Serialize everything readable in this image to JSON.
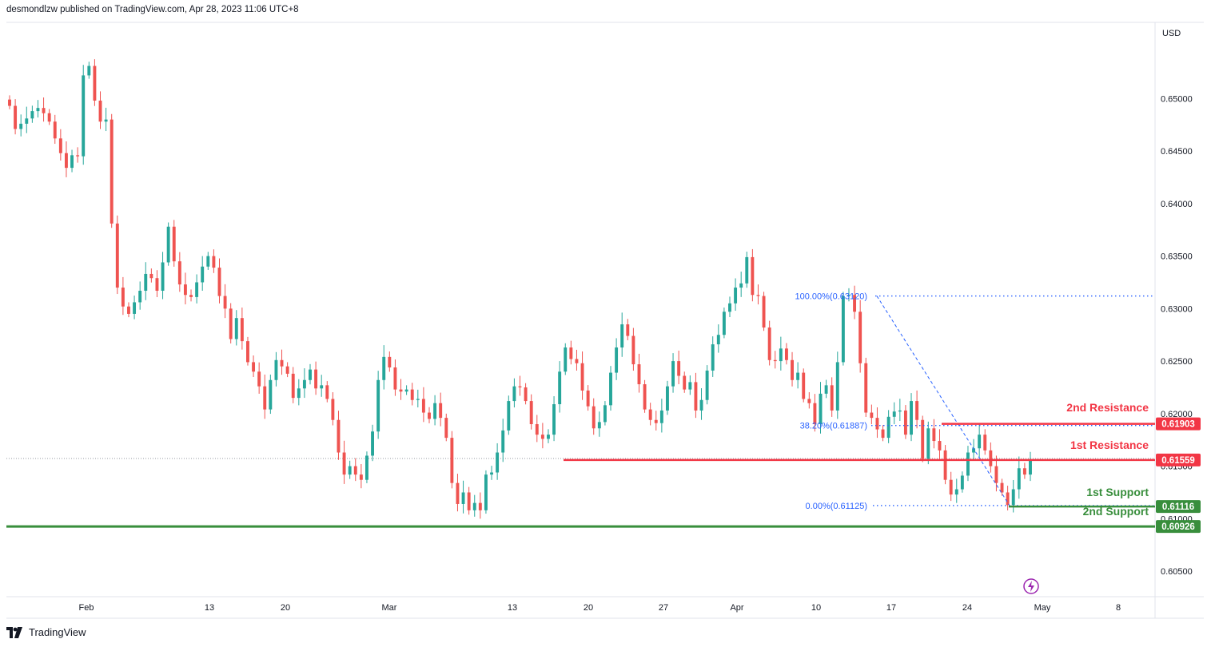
{
  "header": {
    "attribution": "desmondlzw published on TradingView.com, Apr 28, 2023 11:06 UTC+8"
  },
  "footer": {
    "brand": "TradingView"
  },
  "chart_data": {
    "type": "candlestick",
    "currency_label": "USD",
    "ylim": [
      0.6025,
      0.6555
    ],
    "y_ticks": [
      "0.65000",
      "0.64500",
      "0.64000",
      "0.63500",
      "0.63000",
      "0.62500",
      "0.62000",
      "0.61500",
      "0.61000",
      "0.60500"
    ],
    "x_ticks": [
      "Feb",
      "13",
      "20",
      "Mar",
      "13",
      "20",
      "27",
      "Apr",
      "10",
      "17",
      "24",
      "May",
      "8"
    ],
    "colors": {
      "up": "#26a69a",
      "down": "#ef5350",
      "resistance": "#f23645",
      "support": "#388e3c",
      "fib": "#2962ff"
    },
    "close_series": [
      0.6493,
      0.6471,
      0.6476,
      0.6481,
      0.6488,
      0.6491,
      0.6486,
      0.6478,
      0.6462,
      0.6448,
      0.6434,
      0.6446,
      0.6445,
      0.6522,
      0.6531,
      0.6498,
      0.6478,
      0.648,
      0.6381,
      0.632,
      0.6302,
      0.6295,
      0.6306,
      0.6317,
      0.6333,
      0.6329,
      0.6317,
      0.6344,
      0.6378,
      0.6345,
      0.6323,
      0.6313,
      0.6311,
      0.6325,
      0.634,
      0.635,
      0.6339,
      0.6312,
      0.63,
      0.6271,
      0.6291,
      0.6269,
      0.6249,
      0.624,
      0.6226,
      0.6204,
      0.6232,
      0.6251,
      0.6245,
      0.6238,
      0.6215,
      0.6224,
      0.6232,
      0.6242,
      0.6224,
      0.6227,
      0.6214,
      0.6194,
      0.6163,
      0.6142,
      0.615,
      0.6142,
      0.6137,
      0.616,
      0.6183,
      0.6232,
      0.6254,
      0.6244,
      0.6223,
      0.6221,
      0.6223,
      0.6213,
      0.6214,
      0.6201,
      0.6195,
      0.621,
      0.6196,
      0.6177,
      0.6134,
      0.6114,
      0.6125,
      0.6108,
      0.6115,
      0.6108,
      0.6142,
      0.6144,
      0.6163,
      0.6184,
      0.6212,
      0.6226,
      0.6225,
      0.6212,
      0.619,
      0.618,
      0.6176,
      0.618,
      0.6209,
      0.624,
      0.6263,
      0.6252,
      0.6248,
      0.6222,
      0.6207,
      0.6186,
      0.6192,
      0.6208,
      0.6239,
      0.6263,
      0.6285,
      0.6274,
      0.6247,
      0.6228,
      0.6204,
      0.6194,
      0.6191,
      0.6203,
      0.6226,
      0.625,
      0.6236,
      0.6223,
      0.623,
      0.6203,
      0.6213,
      0.6241,
      0.6266,
      0.6275,
      0.6297,
      0.6305,
      0.632,
      0.6324,
      0.6349,
      0.6313,
      0.6312,
      0.6282,
      0.6251,
      0.625,
      0.6262,
      0.6251,
      0.6232,
      0.6239,
      0.6214,
      0.621,
      0.619,
      0.6219,
      0.6227,
      0.6203,
      0.6249,
      0.6312,
      0.6313,
      0.6297,
      0.6248,
      0.6201,
      0.6196,
      0.6185,
      0.6177,
      0.6197,
      0.6202,
      0.6203,
      0.618,
      0.6212,
      0.6194,
      0.6157,
      0.6186,
      0.6174,
      0.6165,
      0.6137,
      0.6123,
      0.6128,
      0.6141,
      0.6163,
      0.6167,
      0.618,
      0.6165,
      0.615,
      0.6134,
      0.6125,
      0.6113,
      0.6128,
      0.6148,
      0.6142,
      0.6156
    ],
    "lines": [
      {
        "label": "2nd Resistance",
        "value": "0.61903",
        "kind": "resistance",
        "y": 0.61903
      },
      {
        "label": "1st Resistance",
        "value": "0.61559",
        "kind": "resistance",
        "y": 0.61559
      },
      {
        "label": "1st Support",
        "value": "0.61116",
        "kind": "support",
        "y": 0.61116
      },
      {
        "label": "2nd Support",
        "value": "0.60926",
        "kind": "support",
        "y": 0.60926
      }
    ],
    "fib_levels": [
      {
        "label": "100.00%(0.63120)",
        "y": 0.6312
      },
      {
        "label": "38.20%(0.61887)",
        "y": 0.61887
      },
      {
        "label": "0.00%(0.61125)",
        "y": 0.61125
      }
    ]
  }
}
